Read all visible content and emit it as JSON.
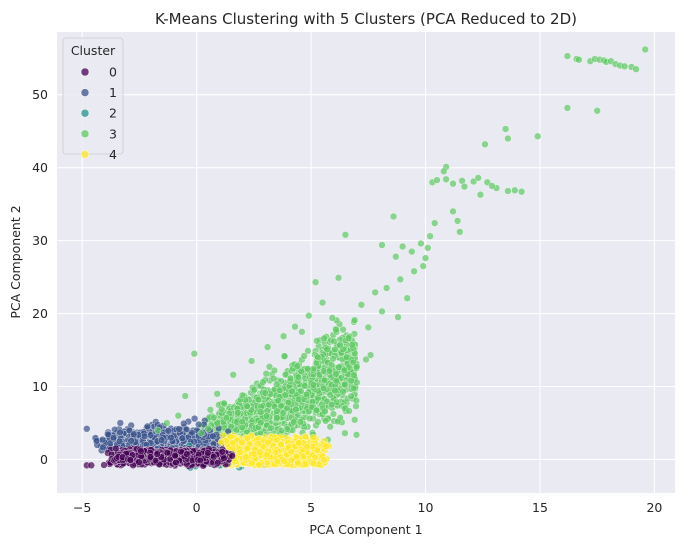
{
  "chart_data": {
    "type": "scatter",
    "title": "K-Means Clustering with 5 Clusters (PCA Reduced to 2D)",
    "xlabel": "PCA Component 1",
    "ylabel": "PCA Component 2",
    "xlim": [
      -6.1,
      20.9
    ],
    "ylim": [
      -4.6,
      58.6
    ],
    "xticks": [
      -5,
      0,
      5,
      10,
      15,
      20
    ],
    "yticks": [
      0,
      10,
      20,
      30,
      40,
      50
    ],
    "grid": true,
    "background": "#eaeaf2",
    "legend": {
      "title": "Cluster",
      "position": "top-left",
      "entries": [
        {
          "label": "0",
          "color": "#440154"
        },
        {
          "label": "1",
          "color": "#3b528b"
        },
        {
          "label": "2",
          "color": "#21918c"
        },
        {
          "label": "3",
          "color": "#5ec962"
        },
        {
          "label": "4",
          "color": "#fde725"
        }
      ]
    },
    "series": [
      {
        "name": "3",
        "color": "#5ec962",
        "points": [
          [
            16.2,
            55.3
          ],
          [
            16.6,
            54.9
          ],
          [
            16.7,
            54.8
          ],
          [
            17.2,
            54.6
          ],
          [
            17.4,
            54.9
          ],
          [
            17.6,
            54.8
          ],
          [
            17.8,
            54.7
          ],
          [
            17.9,
            54.5
          ],
          [
            18.1,
            54.6
          ],
          [
            18.3,
            54.2
          ],
          [
            18.5,
            54.0
          ],
          [
            18.7,
            53.9
          ],
          [
            19.0,
            53.8
          ],
          [
            19.2,
            53.5
          ],
          [
            19.6,
            56.2
          ],
          [
            16.2,
            48.2
          ],
          [
            17.5,
            47.8
          ],
          [
            13.5,
            45.3
          ],
          [
            13.6,
            44.0
          ],
          [
            14.9,
            44.3
          ],
          [
            12.6,
            43.2
          ],
          [
            10.9,
            40.1
          ],
          [
            10.8,
            39.5
          ],
          [
            10.3,
            38.0
          ],
          [
            10.5,
            38.3
          ],
          [
            10.9,
            38.4
          ],
          [
            11.2,
            37.8
          ],
          [
            11.6,
            38.2
          ],
          [
            12.1,
            38.1
          ],
          [
            12.7,
            38.0
          ],
          [
            13.1,
            37.2
          ],
          [
            13.6,
            36.8
          ],
          [
            13.9,
            36.9
          ],
          [
            14.2,
            36.7
          ],
          [
            12.4,
            36.3
          ],
          [
            12.9,
            37.5
          ],
          [
            11.7,
            37.4
          ],
          [
            12.3,
            38.6
          ],
          [
            10.4,
            32.4
          ],
          [
            10.2,
            30.6
          ],
          [
            10.1,
            29.0
          ],
          [
            9.8,
            29.6
          ],
          [
            10.0,
            27.6
          ],
          [
            9.4,
            28.5
          ],
          [
            11.2,
            34.0
          ],
          [
            11.4,
            32.7
          ],
          [
            11.5,
            31.2
          ],
          [
            9.0,
            29.2
          ],
          [
            8.7,
            27.8
          ],
          [
            8.1,
            29.4
          ],
          [
            8.6,
            33.3
          ],
          [
            9.9,
            26.5
          ],
          [
            9.5,
            25.8
          ],
          [
            8.9,
            24.7
          ],
          [
            8.3,
            23.5
          ],
          [
            7.8,
            22.9
          ],
          [
            8.1,
            20.3
          ],
          [
            7.2,
            21.2
          ],
          [
            6.9,
            19.1
          ],
          [
            6.4,
            17.8
          ],
          [
            6.0,
            16.2
          ],
          [
            5.7,
            15.1
          ],
          [
            5.3,
            14.0
          ],
          [
            7.5,
            18.1
          ],
          [
            8.8,
            19.5
          ],
          [
            9.2,
            22.1
          ],
          [
            6.5,
            30.8
          ],
          [
            6.2,
            24.9
          ],
          [
            5.2,
            24.3
          ],
          [
            7.6,
            14.3
          ],
          [
            7.4,
            13.7
          ],
          [
            6.8,
            15.7
          ],
          [
            4.7,
            14.2
          ],
          [
            4.4,
            12.8
          ],
          [
            4.1,
            11.1
          ],
          [
            3.5,
            10.3
          ],
          [
            3.0,
            9.1
          ],
          [
            2.7,
            8.2
          ],
          [
            2.2,
            7.3
          ],
          [
            1.8,
            6.4
          ],
          [
            1.3,
            5.7
          ],
          [
            0.9,
            5.0
          ],
          [
            0.5,
            4.2
          ],
          [
            0.2,
            3.6
          ],
          [
            -0.1,
            14.5
          ],
          [
            0.9,
            9.0
          ],
          [
            1.6,
            11.6
          ],
          [
            2.4,
            13.5
          ],
          [
            3.1,
            15.4
          ],
          [
            3.8,
            16.9
          ],
          [
            4.3,
            18.2
          ],
          [
            4.9,
            19.7
          ],
          [
            5.5,
            21.5
          ],
          [
            4.6,
            17.5
          ],
          [
            3.4,
            12.2
          ],
          [
            2.9,
            10.6
          ],
          [
            2.0,
            8.8
          ],
          [
            1.2,
            7.7
          ],
          [
            0.6,
            6.8
          ],
          [
            -0.5,
            8.7
          ],
          [
            -0.8,
            6.0
          ],
          [
            -1.3,
            5.0
          ],
          [
            -1.7,
            4.0
          ],
          [
            5.8,
            12.1
          ],
          [
            5.1,
            10.2
          ],
          [
            4.8,
            8.9
          ],
          [
            6.1,
            10.8
          ],
          [
            6.4,
            9.3
          ],
          [
            5.9,
            7.5
          ],
          [
            5.6,
            6.6
          ]
        ]
      }
    ]
  }
}
